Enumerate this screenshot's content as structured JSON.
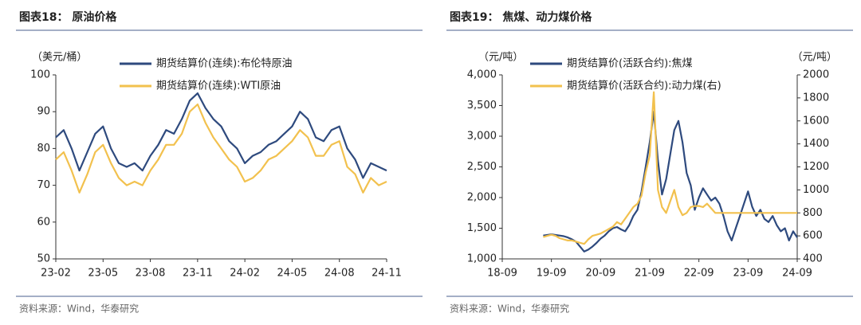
{
  "chart_data": [
    {
      "type": "line",
      "title": "图表18： 原油价格",
      "source": "资料来源：Wind，华泰研究",
      "ylabel": "（美元/桶）",
      "x": [
        0,
        0.5,
        1,
        1.5,
        2,
        2.5,
        3,
        3.5,
        4,
        4.5,
        5,
        5.5,
        6,
        6.5,
        7,
        7.5,
        8,
        8.5,
        9,
        9.5,
        10,
        10.5,
        11,
        11.5,
        12,
        12.5,
        13,
        13.5,
        14,
        14.5,
        15,
        15.5,
        16,
        16.5,
        17,
        17.5,
        18,
        18.5,
        19,
        19.5,
        20,
        20.5,
        21
      ],
      "xlim": [
        0,
        21
      ],
      "xticks": [
        {
          "value": 0,
          "label": "23-02"
        },
        {
          "value": 3,
          "label": "23-05"
        },
        {
          "value": 6,
          "label": "23-08"
        },
        {
          "value": 9,
          "label": "23-11"
        },
        {
          "value": 12,
          "label": "24-02"
        },
        {
          "value": 15,
          "label": "24-05"
        },
        {
          "value": 18,
          "label": "24-08"
        },
        {
          "value": 21,
          "label": "24-11"
        }
      ],
      "ylim": [
        50,
        100
      ],
      "yticks": [
        50,
        60,
        70,
        80,
        90,
        100
      ],
      "series": [
        {
          "name": "期货结算价(连续):布伦特原油",
          "color": "#2e4a7e",
          "values": [
            83,
            85,
            80,
            74,
            79,
            84,
            86,
            80,
            76,
            75,
            76,
            74,
            78,
            81,
            85,
            84,
            88,
            93,
            95,
            91,
            88,
            86,
            82,
            80,
            76,
            78,
            79,
            81,
            82,
            84,
            86,
            90,
            88,
            83,
            82,
            85,
            86,
            80,
            77,
            72,
            76,
            75,
            74
          ]
        },
        {
          "name": "期货结算价(连续):WTI原油",
          "color": "#f2c14e",
          "values": [
            77,
            79,
            74,
            68,
            73,
            79,
            81,
            76,
            72,
            70,
            71,
            70,
            74,
            77,
            81,
            81,
            84,
            90,
            92,
            87,
            83,
            80,
            77,
            75,
            71,
            72,
            74,
            77,
            78,
            80,
            82,
            85,
            83,
            78,
            78,
            81,
            82,
            75,
            73,
            68,
            72,
            70,
            71
          ]
        }
      ]
    },
    {
      "type": "line",
      "title": "图表19： 焦煤、动力煤价格",
      "source": "资料来源：Wind，华泰研究",
      "ylabel": "（元/吨）",
      "y2label": "（元/吨）",
      "x": [
        10,
        11,
        12,
        13,
        14,
        15,
        16,
        17,
        18,
        19,
        20,
        21,
        22,
        23,
        24,
        25,
        26,
        27,
        28,
        29,
        30,
        31,
        32,
        33,
        34,
        35,
        36,
        37,
        38,
        39,
        40,
        41,
        42,
        43,
        44,
        45,
        46,
        47,
        48,
        49,
        50,
        51,
        52,
        53,
        54,
        55,
        56,
        57,
        58,
        59,
        60,
        61,
        62,
        63,
        64,
        65,
        66,
        67,
        68,
        69,
        70,
        71,
        72
      ],
      "xlim": [
        0,
        72
      ],
      "xticks": [
        {
          "value": 0,
          "label": "18-09"
        },
        {
          "value": 12,
          "label": "19-09"
        },
        {
          "value": 24,
          "label": "20-09"
        },
        {
          "value": 36,
          "label": "21-09"
        },
        {
          "value": 48,
          "label": "22-09"
        },
        {
          "value": 60,
          "label": "23-09"
        },
        {
          "value": 72,
          "label": "24-09"
        }
      ],
      "ylim": [
        1000,
        4000
      ],
      "yticks": [
        {
          "value": 1000,
          "label": "1,000"
        },
        {
          "value": 1500,
          "label": "1,500"
        },
        {
          "value": 2000,
          "label": "2,000"
        },
        {
          "value": 2500,
          "label": "2,500"
        },
        {
          "value": 3000,
          "label": "3,000"
        },
        {
          "value": 3500,
          "label": "3,500"
        },
        {
          "value": 4000,
          "label": "4,000"
        }
      ],
      "y2lim": [
        400,
        2000
      ],
      "y2ticks": [
        400,
        600,
        800,
        1000,
        1200,
        1400,
        1600,
        1800,
        2000
      ],
      "series": [
        {
          "name": "期货结算价(活跃合约):焦煤",
          "color": "#2e4a7e",
          "values": [
            1380,
            1390,
            1400,
            1390,
            1380,
            1370,
            1350,
            1320,
            1280,
            1200,
            1120,
            1150,
            1200,
            1260,
            1330,
            1380,
            1450,
            1500,
            1520,
            1480,
            1450,
            1550,
            1700,
            1800,
            2100,
            2500,
            2900,
            3400,
            2600,
            2050,
            2300,
            2700,
            3100,
            3250,
            2900,
            2400,
            2200,
            1800,
            2000,
            2150,
            2050,
            1950,
            2000,
            1900,
            1700,
            1450,
            1300,
            1500,
            1700,
            1900,
            2100,
            1850,
            1700,
            1800,
            1650,
            1600,
            1700,
            1550,
            1450,
            1500,
            1300,
            1450,
            1350
          ]
        },
        {
          "name": "期货结算价(活跃合约):动力煤(右)",
          "color": "#f2c14e",
          "axis": "y2",
          "values": [
            590,
            600,
            610,
            600,
            580,
            570,
            560,
            560,
            550,
            540,
            530,
            570,
            600,
            610,
            620,
            640,
            660,
            680,
            720,
            700,
            750,
            800,
            850,
            880,
            950,
            1150,
            1300,
            1850,
            1000,
            850,
            800,
            900,
            1000,
            850,
            780,
            800,
            850,
            860,
            860,
            850,
            880,
            840,
            800,
            800,
            800,
            800,
            800,
            800,
            800,
            800,
            800,
            800,
            800,
            800,
            800,
            800,
            800,
            800,
            800,
            800,
            800,
            800,
            800
          ]
        }
      ]
    }
  ]
}
